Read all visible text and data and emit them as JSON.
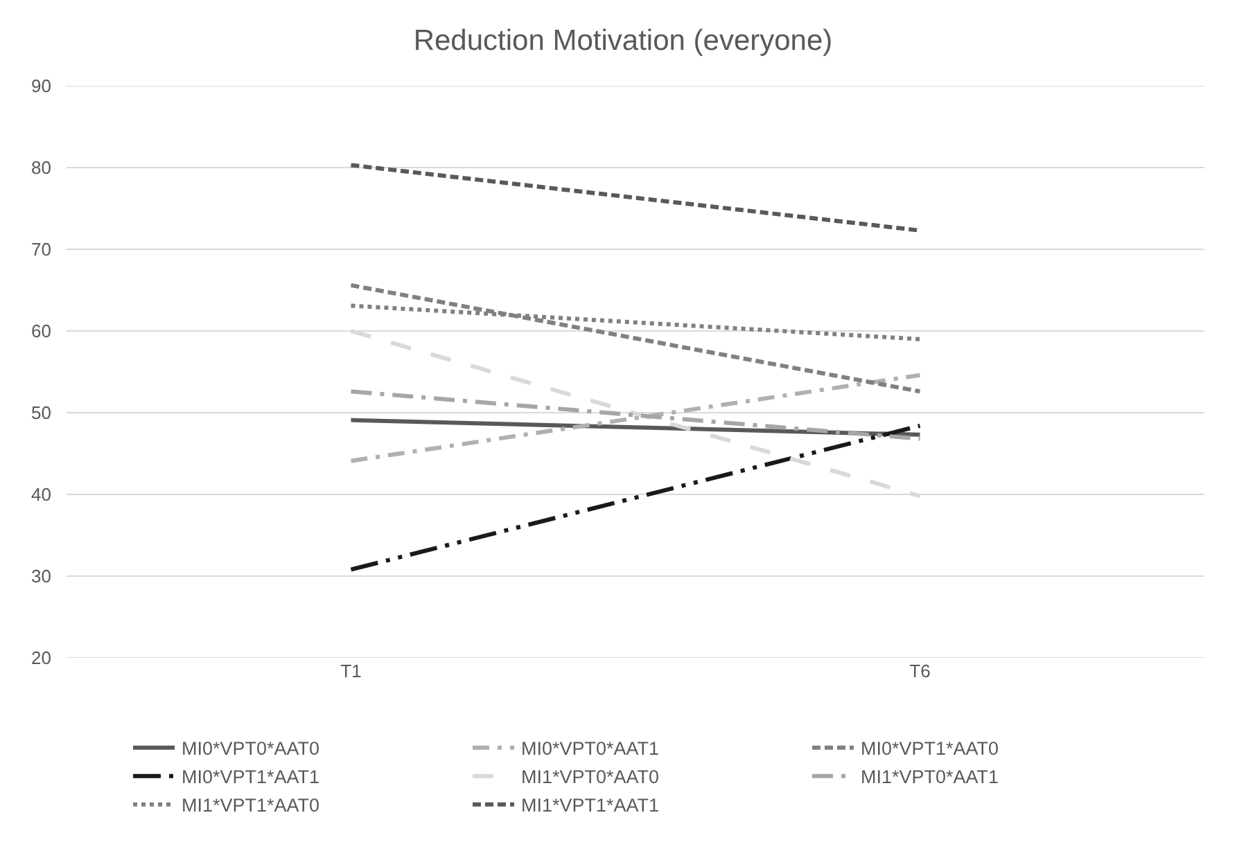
{
  "chart_data": {
    "type": "line",
    "title": "Reduction Motivation (everyone)",
    "categories": [
      "T1",
      "T6"
    ],
    "ylim": [
      20,
      90
    ],
    "yticks": [
      20,
      30,
      40,
      50,
      60,
      70,
      80,
      90
    ],
    "grid": "y",
    "legend": "bottom",
    "marker": "none",
    "series": [
      {
        "name": "MI0*VPT0*AAT0",
        "color": "#595959",
        "line_style": "solid",
        "values": [
          49.1,
          47.3
        ]
      },
      {
        "name": "MI0*VPT0*AAT1",
        "color": "#b0b0b0",
        "line_style": "dashdot",
        "values": [
          44.1,
          54.6
        ]
      },
      {
        "name": "MI0*VPT1*AAT0",
        "color": "#808080",
        "line_style": "dashed",
        "values": [
          65.6,
          52.6
        ]
      },
      {
        "name": "MI0*VPT1*AAT1",
        "color": "#1a1a1a",
        "line_style": "longdashdotdot",
        "values": [
          30.8,
          48.4
        ]
      },
      {
        "name": "MI1*VPT0*AAT0",
        "color": "#d9d9d9",
        "line_style": "longdash",
        "values": [
          60.0,
          39.8
        ]
      },
      {
        "name": "MI1*VPT0*AAT1",
        "color": "#a6a6a6",
        "line_style": "longdashdot",
        "values": [
          52.6,
          46.8
        ]
      },
      {
        "name": "MI1*VPT1*AAT0",
        "color": "#808080",
        "line_style": "dotted",
        "values": [
          63.1,
          59.0
        ]
      },
      {
        "name": "MI1*VPT1*AAT1",
        "color": "#595959",
        "line_style": "dashed",
        "values": [
          80.3,
          72.3
        ]
      }
    ]
  }
}
